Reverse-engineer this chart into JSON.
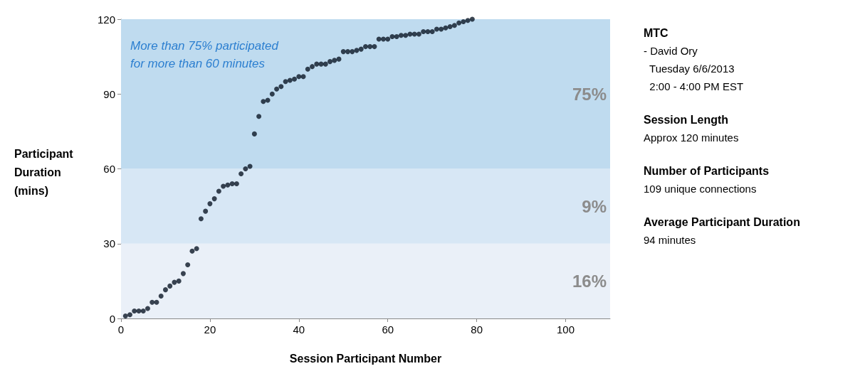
{
  "chart_data": {
    "type": "scatter",
    "xlabel": "Session Participant Number",
    "ylabel": "Participant\nDuration\n(mins)",
    "x": [
      1,
      2,
      3,
      4,
      5,
      6,
      7,
      8,
      9,
      10,
      11,
      12,
      13,
      14,
      15,
      16,
      17,
      18,
      19,
      20,
      21,
      22,
      23,
      24,
      25,
      26,
      27,
      28,
      29,
      30,
      31,
      32,
      33,
      34,
      35,
      36,
      37,
      38,
      39,
      40,
      41,
      42,
      43,
      44,
      45,
      46,
      47,
      48,
      49,
      50,
      51,
      52,
      53,
      54,
      55,
      56,
      57,
      58,
      59,
      60,
      61,
      62,
      63,
      64,
      65,
      66,
      67,
      68,
      69,
      70,
      71,
      72,
      73,
      74,
      75,
      76,
      77,
      78,
      79
    ],
    "series": [
      {
        "color": "#0b1626",
        "values": [
          1,
          1.5,
          3,
          3,
          3,
          4,
          6.5,
          6.5,
          9,
          11.5,
          13,
          14.5,
          15,
          18,
          21.5,
          27,
          28,
          40,
          43,
          46,
          48,
          51,
          53,
          53.5,
          54,
          54,
          58,
          60,
          61,
          74,
          81,
          87,
          87.5,
          90,
          92,
          93,
          95,
          95.5,
          96,
          97,
          97,
          100,
          101,
          102,
          102,
          102,
          103,
          103.5,
          104,
          107,
          107,
          107,
          107.5,
          108,
          109,
          109,
          109,
          112,
          112,
          112,
          113,
          113,
          113.5,
          113.5,
          114,
          114,
          114,
          115,
          115,
          115,
          116,
          116,
          116.5,
          117,
          117.5,
          118.5,
          119,
          119.5,
          120
        ]
      }
    ],
    "xlim": [
      0,
      110
    ],
    "xticks": [
      0,
      20,
      40,
      60,
      80,
      100
    ],
    "ylim": [
      0,
      120
    ],
    "yticks": [
      0,
      30,
      60,
      90,
      120
    ],
    "grid": false,
    "marker": "circle",
    "bands": [
      {
        "axis": "y",
        "from": 0,
        "to": 30,
        "label": "16%",
        "color": "#eaf0f8"
      },
      {
        "axis": "y",
        "from": 30,
        "to": 60,
        "label": "9%",
        "color": "#d7e7f5"
      },
      {
        "axis": "y",
        "from": 60,
        "to": 120,
        "label": "75%",
        "color": "#bfdbef"
      }
    ],
    "annotations": [
      "More than 75% participated\nfor more than 60 minutes",
      "MTC\n- David Ory\n  Tuesday 6/6/2013\n  2:00 - 4:00 PM EST",
      "Session Length\nApprox 120 minutes",
      "Number of Participants\n109 unique connections",
      "Average Participant Duration\n94 minutes"
    ]
  }
}
